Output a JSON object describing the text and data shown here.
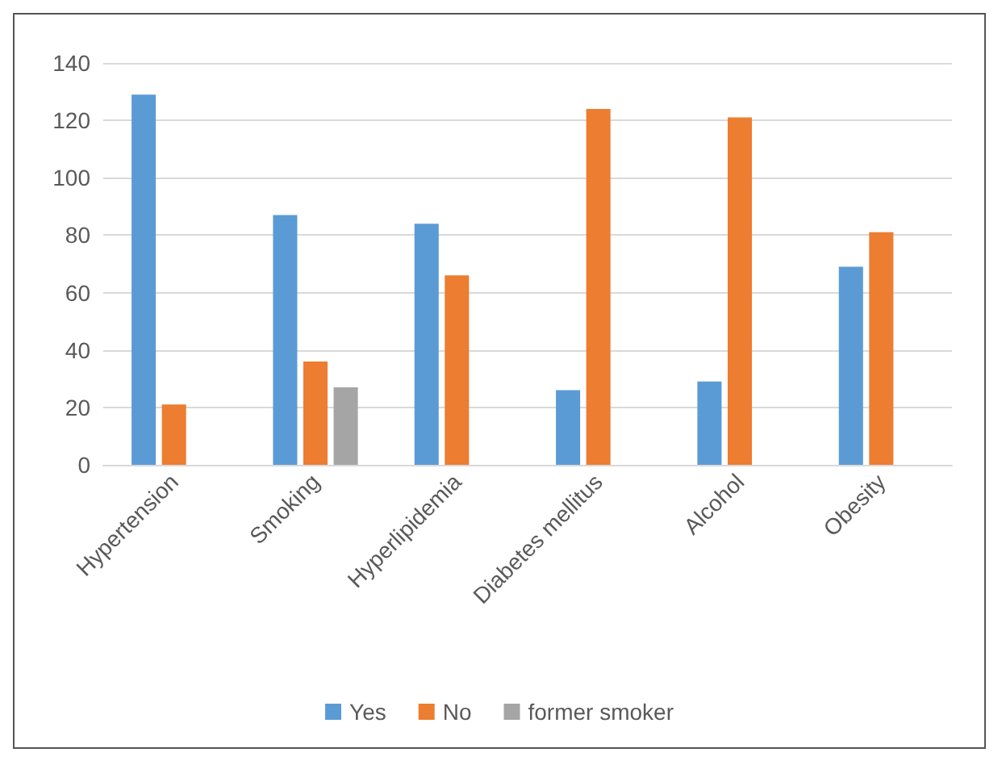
{
  "chart_data": {
    "type": "bar",
    "categories": [
      "Hypertension",
      "Smoking",
      "Hyperlipidemia",
      "Diabetes mellitus",
      "Alcohol",
      "Obesity"
    ],
    "series": [
      {
        "name": "Yes",
        "color": "#5b9bd5",
        "values": [
          129,
          87,
          84,
          26,
          29,
          69
        ]
      },
      {
        "name": "No",
        "color": "#ed7d31",
        "values": [
          21,
          36,
          66,
          124,
          121,
          81
        ]
      },
      {
        "name": "former smoker",
        "color": "#a5a5a5",
        "values": [
          null,
          27,
          null,
          null,
          null,
          null
        ]
      }
    ],
    "ylim": [
      0,
      140
    ],
    "yticks": [
      0,
      20,
      40,
      60,
      80,
      100,
      120,
      140
    ],
    "grid": "y",
    "legend": "bottom"
  }
}
